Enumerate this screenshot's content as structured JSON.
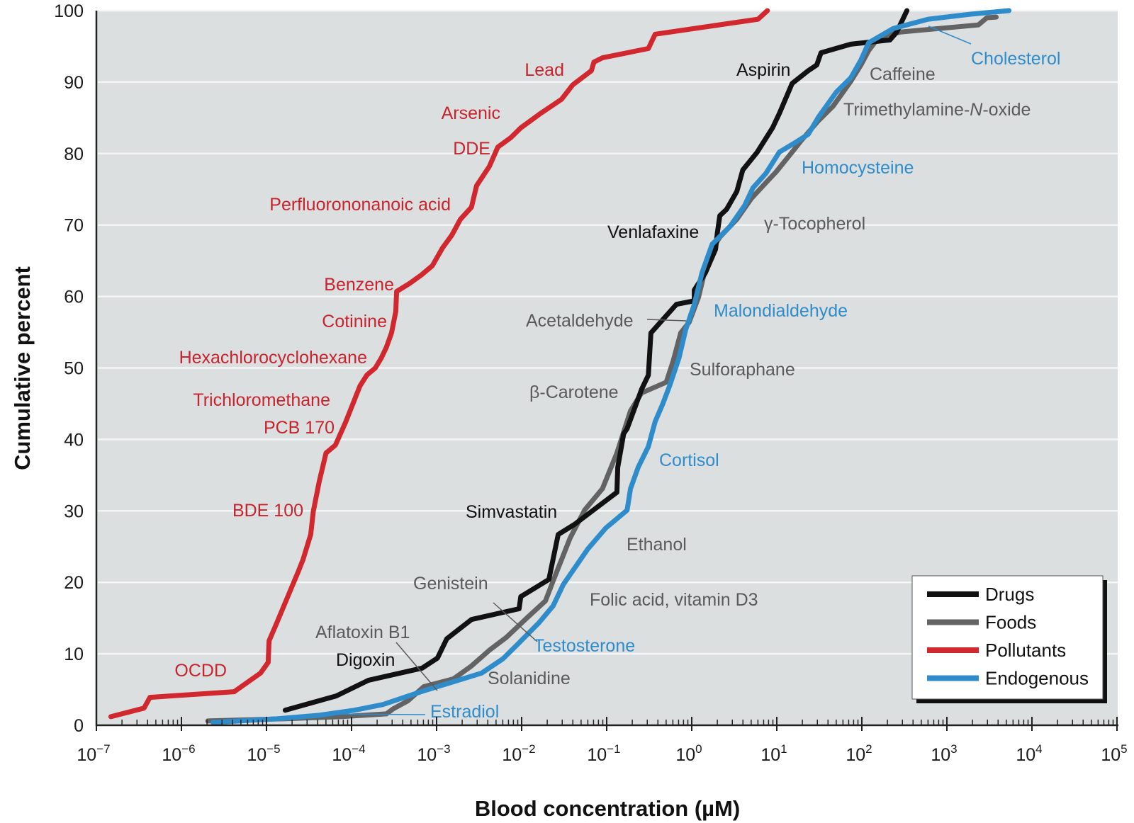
{
  "chart_data": {
    "type": "line",
    "title": "",
    "xlabel": "Blood concentration (µM)",
    "ylabel": "Cumulative percent",
    "x_scale": "log10",
    "xlim_log10": [
      -7,
      5
    ],
    "ylim": [
      0,
      100
    ],
    "x_ticks": [
      {
        "base": "10",
        "exp": "−7"
      },
      {
        "base": "10",
        "exp": "−6"
      },
      {
        "base": "10",
        "exp": "−5"
      },
      {
        "base": "10",
        "exp": "−4"
      },
      {
        "base": "10",
        "exp": "−3"
      },
      {
        "base": "10",
        "exp": "−2"
      },
      {
        "base": "10",
        "exp": "−1"
      },
      {
        "base": "10",
        "exp": "0"
      },
      {
        "base": "10",
        "exp": "1"
      },
      {
        "base": "10",
        "exp": "2"
      },
      {
        "base": "10",
        "exp": "3"
      },
      {
        "base": "10",
        "exp": "4"
      },
      {
        "base": "10",
        "exp": "5"
      }
    ],
    "y_ticks": [
      "0",
      "10",
      "20",
      "30",
      "40",
      "50",
      "60",
      "70",
      "80",
      "90",
      "100"
    ],
    "grid": "horizontal",
    "legend_position": "bottom-right",
    "series": [
      {
        "name": "Drugs",
        "key": "drugs",
        "color": "#111111",
        "points_log10x_y": [
          [
            -4.78,
            2.1
          ],
          [
            -4.18,
            4.1
          ],
          [
            -3.8,
            6.3
          ],
          [
            -3.17,
            8.0
          ],
          [
            -2.99,
            9.4
          ],
          [
            -2.88,
            12.1
          ],
          [
            -2.59,
            14.8
          ],
          [
            -2.03,
            16.3
          ],
          [
            -2.01,
            18.0
          ],
          [
            -1.68,
            20.4
          ],
          [
            -1.57,
            26.7
          ],
          [
            -1.38,
            28.1
          ],
          [
            -0.88,
            32.6
          ],
          [
            -0.87,
            36.1
          ],
          [
            -0.8,
            40.8
          ],
          [
            -0.76,
            41.5
          ],
          [
            -0.59,
            47.0
          ],
          [
            -0.51,
            49.0
          ],
          [
            -0.48,
            54.9
          ],
          [
            -0.18,
            58.9
          ],
          [
            0.03,
            59.4
          ],
          [
            0.03,
            60.9
          ],
          [
            0.16,
            63.3
          ],
          [
            0.28,
            66.6
          ],
          [
            0.3,
            68.8
          ],
          [
            0.33,
            71.3
          ],
          [
            0.41,
            72.2
          ],
          [
            0.53,
            74.7
          ],
          [
            0.6,
            77.7
          ],
          [
            0.77,
            80.2
          ],
          [
            0.95,
            83.6
          ],
          [
            1.03,
            85.6
          ],
          [
            1.18,
            89.8
          ],
          [
            1.37,
            91.6
          ],
          [
            1.47,
            92.4
          ],
          [
            1.52,
            94.1
          ],
          [
            1.87,
            95.3
          ],
          [
            2.33,
            95.9
          ],
          [
            2.41,
            97.0
          ],
          [
            2.53,
            100
          ]
        ]
      },
      {
        "name": "Foods",
        "key": "foods",
        "color": "#636363",
        "points_log10x_y": [
          [
            -5.69,
            0.6
          ],
          [
            -4.8,
            0.9
          ],
          [
            -4.13,
            1.2
          ],
          [
            -3.59,
            1.6
          ],
          [
            -3.51,
            2.3
          ],
          [
            -3.34,
            3.4
          ],
          [
            -3.15,
            5.4
          ],
          [
            -2.8,
            6.5
          ],
          [
            -2.59,
            8.3
          ],
          [
            -2.38,
            10.5
          ],
          [
            -2.18,
            12.3
          ],
          [
            -1.93,
            15.1
          ],
          [
            -1.72,
            17.4
          ],
          [
            -1.63,
            20.2
          ],
          [
            -1.43,
            26.2
          ],
          [
            -1.26,
            30.1
          ],
          [
            -1.05,
            33.1
          ],
          [
            -0.88,
            38.1
          ],
          [
            -0.72,
            44.0
          ],
          [
            -0.59,
            46.5
          ],
          [
            -0.3,
            48.0
          ],
          [
            -0.22,
            50.9
          ],
          [
            -0.13,
            54.9
          ],
          [
            -0.03,
            56.4
          ],
          [
            0.08,
            59.9
          ],
          [
            0.2,
            65.8
          ],
          [
            0.33,
            68.3
          ],
          [
            0.53,
            70.8
          ],
          [
            0.7,
            73.7
          ],
          [
            0.87,
            75.9
          ],
          [
            0.99,
            77.4
          ],
          [
            1.2,
            80.5
          ],
          [
            1.28,
            81.7
          ],
          [
            1.49,
            84.6
          ],
          [
            1.66,
            86.6
          ],
          [
            1.87,
            90.1
          ],
          [
            1.99,
            92.4
          ],
          [
            2.08,
            94.4
          ],
          [
            2.2,
            96.3
          ],
          [
            2.45,
            97.0
          ],
          [
            3.37,
            98.0
          ],
          [
            3.47,
            99.0
          ],
          [
            3.58,
            99.1
          ]
        ]
      },
      {
        "name": "Pollutants",
        "key": "pollutants",
        "color": "#d0282e",
        "points_log10x_y": [
          [
            -6.83,
            1.2
          ],
          [
            -6.44,
            2.4
          ],
          [
            -6.37,
            3.9
          ],
          [
            -5.38,
            4.7
          ],
          [
            -5.07,
            7.3
          ],
          [
            -4.98,
            8.8
          ],
          [
            -4.97,
            11.8
          ],
          [
            -4.88,
            14.3
          ],
          [
            -4.69,
            19.7
          ],
          [
            -4.63,
            21.4
          ],
          [
            -4.57,
            23.2
          ],
          [
            -4.48,
            26.7
          ],
          [
            -4.45,
            29.9
          ],
          [
            -4.38,
            34.1
          ],
          [
            -4.3,
            38.1
          ],
          [
            -4.19,
            39.2
          ],
          [
            -4.07,
            42.4
          ],
          [
            -3.9,
            47.5
          ],
          [
            -3.82,
            49.0
          ],
          [
            -3.72,
            50.0
          ],
          [
            -3.65,
            51.4
          ],
          [
            -3.59,
            52.9
          ],
          [
            -3.53,
            54.9
          ],
          [
            -3.48,
            57.9
          ],
          [
            -3.47,
            60.7
          ],
          [
            -3.32,
            61.8
          ],
          [
            -3.18,
            63.0
          ],
          [
            -3.05,
            64.3
          ],
          [
            -2.93,
            66.8
          ],
          [
            -2.82,
            68.6
          ],
          [
            -2.72,
            70.8
          ],
          [
            -2.59,
            72.5
          ],
          [
            -2.53,
            75.5
          ],
          [
            -2.38,
            78.2
          ],
          [
            -2.28,
            80.9
          ],
          [
            -2.13,
            82.2
          ],
          [
            -2.01,
            83.6
          ],
          [
            -1.78,
            85.6
          ],
          [
            -1.53,
            87.6
          ],
          [
            -1.4,
            89.6
          ],
          [
            -1.18,
            91.6
          ],
          [
            -1.15,
            92.8
          ],
          [
            -1.05,
            93.4
          ],
          [
            -0.51,
            94.7
          ],
          [
            -0.43,
            96.7
          ],
          [
            0.78,
            98.8
          ],
          [
            0.89,
            100
          ]
        ]
      },
      {
        "name": "Endogenous",
        "key": "endogenous",
        "color": "#2f8ccb",
        "points_log10x_y": [
          [
            -5.63,
            0.4
          ],
          [
            -4.88,
            0.9
          ],
          [
            -4.38,
            1.4
          ],
          [
            -3.97,
            2.1
          ],
          [
            -3.63,
            2.9
          ],
          [
            -3.38,
            3.9
          ],
          [
            -3.13,
            4.9
          ],
          [
            -2.8,
            6.1
          ],
          [
            -2.47,
            7.3
          ],
          [
            -2.22,
            9.3
          ],
          [
            -2.05,
            11.3
          ],
          [
            -1.8,
            14.3
          ],
          [
            -1.63,
            16.7
          ],
          [
            -1.51,
            19.7
          ],
          [
            -1.22,
            24.7
          ],
          [
            -1.01,
            27.6
          ],
          [
            -0.76,
            30.1
          ],
          [
            -0.72,
            33.1
          ],
          [
            -0.63,
            36.1
          ],
          [
            -0.51,
            39.0
          ],
          [
            -0.43,
            42.5
          ],
          [
            -0.34,
            45.0
          ],
          [
            -0.26,
            47.5
          ],
          [
            -0.15,
            51.4
          ],
          [
            -0.07,
            55.4
          ],
          [
            0.03,
            58.9
          ],
          [
            0.12,
            63.3
          ],
          [
            0.24,
            67.3
          ],
          [
            0.45,
            69.8
          ],
          [
            0.62,
            72.7
          ],
          [
            0.72,
            75.2
          ],
          [
            0.87,
            77.2
          ],
          [
            1.03,
            80.2
          ],
          [
            1.24,
            81.7
          ],
          [
            1.37,
            82.7
          ],
          [
            1.49,
            85.1
          ],
          [
            1.7,
            88.6
          ],
          [
            1.87,
            90.6
          ],
          [
            1.99,
            93.1
          ],
          [
            2.08,
            95.5
          ],
          [
            2.37,
            97.5
          ],
          [
            2.78,
            98.8
          ],
          [
            3.28,
            99.5
          ],
          [
            3.73,
            100
          ]
        ]
      }
    ],
    "annotations": [
      {
        "text": "Lead",
        "series": "pollutants"
      },
      {
        "text": "Arsenic",
        "series": "pollutants"
      },
      {
        "text": "DDE",
        "series": "pollutants"
      },
      {
        "text": "Perfluorononanoic acid",
        "series": "pollutants"
      },
      {
        "text": "Benzene",
        "series": "pollutants"
      },
      {
        "text": "Cotinine",
        "series": "pollutants"
      },
      {
        "text": "Hexachlorocyclohexane",
        "series": "pollutants"
      },
      {
        "text": "Trichloromethane",
        "series": "pollutants"
      },
      {
        "text": "PCB 170",
        "series": "pollutants"
      },
      {
        "text": "BDE 100",
        "series": "pollutants"
      },
      {
        "text": "OCDD",
        "series": "pollutants"
      },
      {
        "text": "Aspirin",
        "series": "drugs"
      },
      {
        "text": "Venlafaxine",
        "series": "drugs"
      },
      {
        "text": "Simvastatin",
        "series": "drugs"
      },
      {
        "text": "Digoxin",
        "series": "drugs"
      },
      {
        "text": "Caffeine",
        "series": "foods"
      },
      {
        "text": "Trimethylamine-",
        "italic_part": "N",
        "suffix": "-oxide",
        "series": "foods"
      },
      {
        "text": "γ-Tocopherol",
        "series": "foods"
      },
      {
        "text": "Acetaldehyde",
        "series": "foods"
      },
      {
        "text": "Sulforaphane",
        "series": "foods"
      },
      {
        "text": "β-Carotene",
        "series": "foods"
      },
      {
        "text": "Ethanol",
        "series": "foods"
      },
      {
        "text": "Genistein",
        "series": "foods"
      },
      {
        "text": "Folic acid, vitamin D3",
        "series": "foods"
      },
      {
        "text": "Aflatoxin B1",
        "series": "foods"
      },
      {
        "text": "Solanidine",
        "series": "foods"
      },
      {
        "text": "Cholesterol",
        "series": "endogenous"
      },
      {
        "text": "Homocysteine",
        "series": "endogenous"
      },
      {
        "text": "Malondialdehyde",
        "series": "endogenous"
      },
      {
        "text": "Cortisol",
        "series": "endogenous"
      },
      {
        "text": "Testosterone",
        "series": "endogenous"
      },
      {
        "text": "Estradiol",
        "series": "endogenous"
      }
    ],
    "label_colors": {
      "drugs": "#111111",
      "foods": "#5a5a5a",
      "pollutants": "#c8232c",
      "endogenous": "#2f8ccb"
    }
  }
}
